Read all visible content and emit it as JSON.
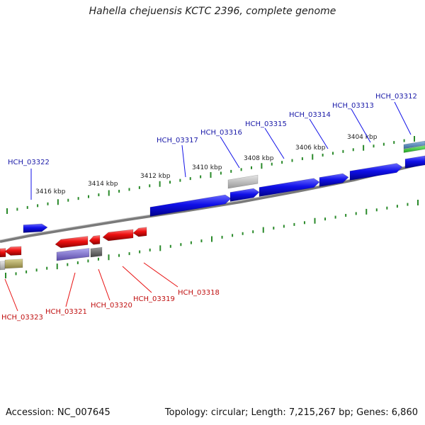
{
  "title": "Hahella chejuensis KCTC 2396, complete genome",
  "accession": "Accession: NC_007645",
  "summary": "Topology: circular; Length: 7,215,267 bp; Genes: 6,860",
  "colors": {
    "forward": "#1010e8",
    "reverse": "#e81010",
    "forward_label": "#1a1aa8",
    "reverse_label": "#c01010",
    "tick": "#2a8a2a",
    "backbone": "#8a8a8a"
  },
  "scale_labels": [
    "3416 kbp",
    "3414 kbp",
    "3412 kbp",
    "3410 kbp",
    "3408 kbp",
    "3406 kbp",
    "3404 kbp"
  ],
  "forward_genes": [
    "HCH_03322",
    "HCH_03317",
    "HCH_03316",
    "HCH_03315",
    "HCH_03314",
    "HCH_03313",
    "HCH_03312"
  ],
  "reverse_genes": [
    "HCH_03323",
    "HCH_03321",
    "HCH_03320",
    "HCH_03319",
    "HCH_03318"
  ]
}
